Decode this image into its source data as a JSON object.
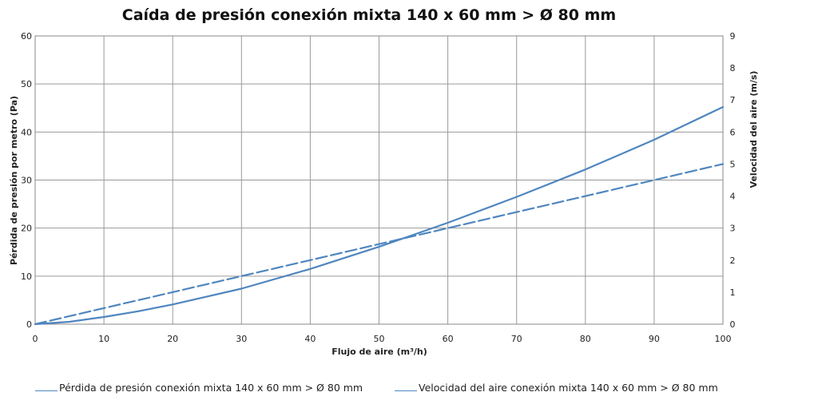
{
  "colors": {
    "series": "#4f86bf",
    "grid": "#9a9a9a"
  },
  "chart_data": {
    "type": "line",
    "title": "Caída de presión conexión mixta 140 x 60 mm > Ø 80 mm",
    "xlabel": "Flujo de aire (m³/h)",
    "ylabel": "Pérdida de presión por metro (Pa)",
    "y2label": "Velocidad del aire (m/s)",
    "xlim": [
      0,
      100
    ],
    "ylim": [
      0,
      60
    ],
    "y2lim": [
      0,
      9
    ],
    "xticks": [
      "0",
      "10",
      "20",
      "30",
      "40",
      "50",
      "60",
      "70",
      "80",
      "90",
      "100"
    ],
    "yticks": [
      "0",
      "10",
      "20",
      "30",
      "40",
      "50",
      "60"
    ],
    "y2ticks": [
      "0",
      "1",
      "2",
      "3",
      "4",
      "5",
      "6",
      "7",
      "8",
      "9"
    ],
    "grid": true,
    "legend_position": "bottom",
    "series": [
      {
        "name": "Pérdida de presión conexión mixta 140 x 60 mm > Ø 80 mm",
        "axis": "left",
        "style": "solid",
        "x": [
          0,
          5,
          10,
          15,
          20,
          30,
          40,
          50,
          60,
          70,
          80,
          90,
          100
        ],
        "y": [
          0,
          0.5,
          1.5,
          2.7,
          4.1,
          7.4,
          11.5,
          16.1,
          21.1,
          26.5,
          32.2,
          38.4,
          45.2
        ]
      },
      {
        "name": "Velocidad del aire conexión mixta 140 x 60 mm > Ø 80 mm",
        "axis": "right",
        "style": "dashed",
        "x": [
          0,
          10,
          20,
          30,
          40,
          50,
          60,
          70,
          80,
          90,
          100
        ],
        "y": [
          0,
          0.5,
          1.0,
          1.5,
          2.0,
          2.5,
          3.0,
          3.5,
          4.0,
          4.5,
          5.0
        ]
      }
    ]
  }
}
